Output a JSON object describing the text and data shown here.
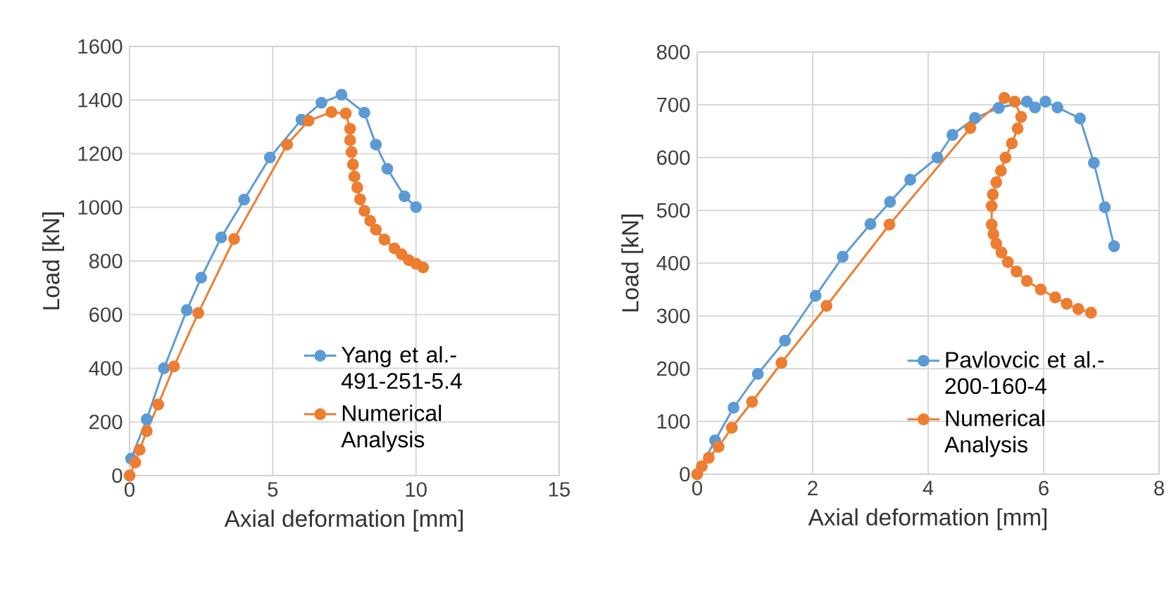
{
  "chart_data": [
    {
      "type": "line",
      "xlabel": "Axial deformation [mm]",
      "ylabel": "Load [kN]",
      "xlim": [
        0,
        15
      ],
      "ylim": [
        0,
        1600
      ],
      "xticks": [
        0,
        5,
        10,
        15
      ],
      "yticks": [
        0,
        200,
        400,
        600,
        800,
        1000,
        1200,
        1400,
        1600
      ],
      "grid": true,
      "legend": "bottom right",
      "marker": "circle",
      "line_style": "solid",
      "series": [
        {
          "name": "Yang et al.- 491-251-5.4",
          "color": "#5b9bd5",
          "x": [
            0.05,
            0.6,
            1.2,
            2.0,
            2.5,
            3.2,
            4.0,
            4.9,
            6.0,
            6.7,
            7.4,
            8.2,
            8.6,
            9.0,
            9.6,
            10.0
          ],
          "values": [
            63,
            210,
            400,
            617,
            738,
            888,
            1029,
            1186,
            1327,
            1390,
            1420,
            1353,
            1234,
            1144,
            1041,
            1001
          ]
        },
        {
          "name": "Numerical Analysis",
          "color": "#ed7d31",
          "x": [
            0,
            0.2,
            0.35,
            0.6,
            1.0,
            1.55,
            2.4,
            3.65,
            5.5,
            6.25,
            7.05,
            7.55,
            7.7,
            7.7,
            7.75,
            7.8,
            7.85,
            7.95,
            8.05,
            8.2,
            8.4,
            8.6,
            8.9,
            9.25,
            9.5,
            9.75,
            10.0,
            10.25
          ],
          "values": [
            0,
            49,
            96,
            166,
            265,
            407,
            606,
            882,
            1234,
            1323,
            1355,
            1350,
            1293,
            1250,
            1206,
            1160,
            1115,
            1074,
            1030,
            987,
            950,
            917,
            880,
            847,
            825,
            803,
            790,
            776
          ]
        }
      ]
    },
    {
      "type": "line",
      "xlabel": "Axial deformation [mm]",
      "ylabel": "Load [kN]",
      "xlim": [
        0,
        8
      ],
      "ylim": [
        0,
        800
      ],
      "xticks": [
        0,
        2,
        4,
        6,
        8
      ],
      "yticks": [
        0,
        100,
        200,
        300,
        400,
        500,
        600,
        700,
        800
      ],
      "grid": true,
      "legend": "bottom right",
      "marker": "circle",
      "line_style": "solid",
      "series": [
        {
          "name": "Pavlovcic et al.- 200-160-4",
          "color": "#5b9bd5",
          "x": [
            0,
            0.31,
            0.63,
            1.05,
            1.52,
            2.05,
            2.52,
            3.0,
            3.34,
            3.69,
            4.16,
            4.42,
            4.81,
            5.22,
            5.71,
            5.85,
            6.03,
            6.24,
            6.63,
            6.87,
            7.06,
            7.22
          ],
          "values": [
            0,
            64,
            126,
            190,
            253,
            338,
            412,
            474,
            516,
            558,
            600,
            643,
            675,
            694,
            706,
            695,
            706,
            695,
            674,
            590,
            506,
            432
          ]
        },
        {
          "name": "Numerical Analysis",
          "color": "#ed7d31",
          "x": [
            0,
            0.08,
            0.2,
            0.37,
            0.6,
            0.95,
            1.46,
            2.24,
            3.33,
            4.73,
            5.32,
            5.5,
            5.61,
            5.55,
            5.45,
            5.34,
            5.26,
            5.18,
            5.12,
            5.1,
            5.1,
            5.13,
            5.18,
            5.27,
            5.38,
            5.53,
            5.71,
            5.95,
            6.2,
            6.4,
            6.6,
            6.82
          ],
          "values": [
            0,
            15,
            31,
            52,
            88,
            137,
            211,
            319,
            473,
            656,
            713,
            706,
            677,
            655,
            627,
            600,
            575,
            553,
            530,
            508,
            473,
            455,
            437,
            420,
            402,
            384,
            366,
            350,
            335,
            323,
            313,
            306
          ]
        }
      ]
    }
  ]
}
